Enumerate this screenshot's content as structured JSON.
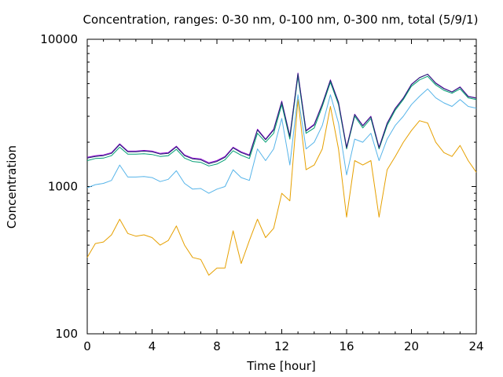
{
  "chart_data": {
    "type": "line",
    "title": "Concentration, ranges: 0-30 nm, 0-100 nm, 0-300 nm, total (5/9/1)",
    "xlabel": "Time [hour]",
    "ylabel": "Concentration",
    "xlim": [
      0,
      24
    ],
    "ylim": [
      100,
      10000
    ],
    "yscale": "log",
    "grid": false,
    "legend": "none",
    "x_ticks": [
      "0",
      "4",
      "8",
      "12",
      "16",
      "20",
      "24"
    ],
    "x_tick_values": [
      0,
      4,
      8,
      12,
      16,
      20,
      24
    ],
    "y_ticks": [
      "100",
      "1000",
      "10000"
    ],
    "y_tick_values": [
      100,
      1000,
      10000
    ],
    "x": [
      0,
      0.5,
      1,
      1.5,
      2,
      2.5,
      3,
      3.5,
      4,
      4.5,
      5,
      5.5,
      6,
      6.5,
      7,
      7.5,
      8,
      8.5,
      9,
      9.5,
      10,
      10.5,
      11,
      11.5,
      12,
      12.5,
      13,
      13.5,
      14,
      14.5,
      15,
      15.5,
      16,
      16.5,
      17,
      17.5,
      18,
      18.5,
      19,
      19.5,
      20,
      20.5,
      21,
      21.5,
      22,
      22.5,
      23,
      23.5,
      24
    ],
    "series": [
      {
        "color": "#e6a000",
        "values": [
          330,
          410,
          420,
          470,
          600,
          480,
          460,
          470,
          450,
          400,
          430,
          540,
          400,
          330,
          320,
          250,
          280,
          280,
          500,
          300,
          430,
          600,
          450,
          520,
          900,
          800,
          3900,
          1300,
          1400,
          1800,
          3500,
          1800,
          620,
          1500,
          1400,
          1500,
          620,
          1300,
          1600,
          2000,
          2400,
          2800,
          2700,
          2000,
          1700,
          1600,
          1900,
          1500,
          1250
        ]
      },
      {
        "color": "#56b4e9",
        "values": [
          980,
          1030,
          1050,
          1100,
          1400,
          1160,
          1160,
          1170,
          1150,
          1080,
          1120,
          1280,
          1050,
          960,
          970,
          900,
          960,
          1000,
          1300,
          1150,
          1100,
          1800,
          1500,
          1800,
          2900,
          1400,
          4200,
          1800,
          2000,
          2600,
          4200,
          2700,
          1200,
          2100,
          2000,
          2300,
          1500,
          2100,
          2600,
          3000,
          3600,
          4100,
          4600,
          4000,
          3700,
          3500,
          3900,
          3500,
          3400
        ]
      },
      {
        "color": "#009e73",
        "values": [
          1500,
          1550,
          1560,
          1620,
          1850,
          1660,
          1660,
          1670,
          1650,
          1600,
          1620,
          1790,
          1560,
          1480,
          1460,
          1380,
          1420,
          1520,
          1750,
          1630,
          1550,
          2300,
          2000,
          2300,
          3600,
          2100,
          5600,
          2300,
          2500,
          3500,
          5100,
          3600,
          1800,
          3000,
          2500,
          2900,
          1800,
          2600,
          3300,
          3900,
          4800,
          5300,
          5600,
          4900,
          4500,
          4300,
          4600,
          4000,
          3900
        ]
      },
      {
        "color": "#9400d3",
        "values": [
          1580,
          1620,
          1640,
          1700,
          1950,
          1740,
          1740,
          1760,
          1740,
          1680,
          1700,
          1880,
          1640,
          1560,
          1540,
          1450,
          1500,
          1600,
          1850,
          1720,
          1640,
          2450,
          2100,
          2450,
          3800,
          2200,
          5900,
          2400,
          2650,
          3650,
          5300,
          3750,
          1850,
          3100,
          2600,
          3000,
          1850,
          2700,
          3400,
          4000,
          4950,
          5500,
          5800,
          5050,
          4650,
          4400,
          4750,
          4100,
          4000
        ]
      },
      {
        "color": "#1f2a6e",
        "values": [
          1560,
          1600,
          1620,
          1680,
          1930,
          1720,
          1720,
          1740,
          1720,
          1660,
          1680,
          1860,
          1620,
          1540,
          1520,
          1430,
          1480,
          1580,
          1830,
          1700,
          1620,
          2420,
          2080,
          2420,
          3760,
          2180,
          5850,
          2380,
          2620,
          3620,
          5260,
          3720,
          1830,
          3080,
          2580,
          2980,
          1830,
          2680,
          3380,
          3980,
          4920,
          5480,
          5780,
          5020,
          4620,
          4380,
          4720,
          4080,
          3980
        ]
      }
    ]
  }
}
